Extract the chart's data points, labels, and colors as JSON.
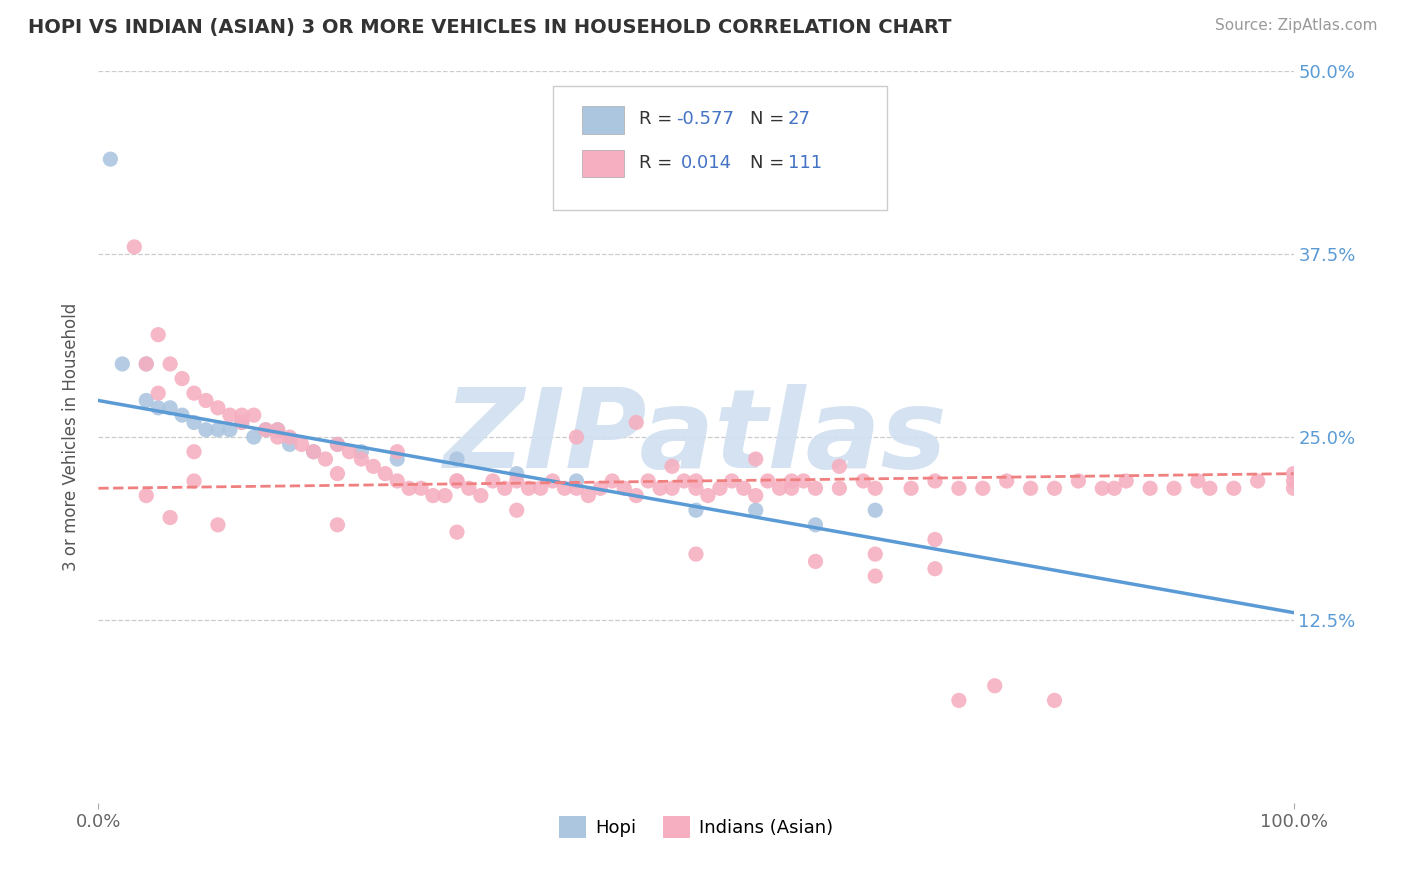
{
  "title": "HOPI VS INDIAN (ASIAN) 3 OR MORE VEHICLES IN HOUSEHOLD CORRELATION CHART",
  "source_text": "Source: ZipAtlas.com",
  "ylabel": "3 or more Vehicles in Household",
  "xmin": 0.0,
  "xmax": 100.0,
  "ymin": 0.0,
  "ymax": 0.5,
  "hopi_R": -0.577,
  "hopi_N": 27,
  "asian_R": 0.014,
  "asian_N": 111,
  "hopi_color": "#adc6e0",
  "asian_color": "#f5afc0",
  "hopi_line_color": "#5b9bd5",
  "asian_line_color": "#f08080",
  "watermark": "ZIPatlas",
  "watermark_color": "#d0dff0",
  "legend_R_color": "#4472c4",
  "hopi_line_x0": 0.0,
  "hopi_line_y0": 0.275,
  "hopi_line_x1": 100.0,
  "hopi_line_y1": 0.13,
  "asian_line_x0": 0.0,
  "asian_line_y0": 0.215,
  "asian_line_x1": 100.0,
  "asian_line_y1": 0.225,
  "hopi_x": [
    1,
    2,
    4,
    4,
    5,
    6,
    7,
    8,
    9,
    10,
    11,
    12,
    13,
    14,
    15,
    16,
    18,
    20,
    22,
    25,
    30,
    35,
    40,
    50,
    55,
    60,
    65
  ],
  "hopi_y": [
    0.44,
    0.3,
    0.3,
    0.275,
    0.27,
    0.27,
    0.265,
    0.26,
    0.255,
    0.255,
    0.255,
    0.26,
    0.25,
    0.255,
    0.255,
    0.245,
    0.24,
    0.245,
    0.24,
    0.235,
    0.235,
    0.225,
    0.22,
    0.2,
    0.2,
    0.19,
    0.2
  ],
  "asian_x": [
    3,
    4,
    5,
    6,
    7,
    8,
    9,
    10,
    11,
    12,
    13,
    14,
    15,
    16,
    17,
    18,
    19,
    20,
    21,
    22,
    23,
    24,
    25,
    26,
    27,
    28,
    29,
    30,
    31,
    32,
    33,
    34,
    35,
    36,
    37,
    38,
    39,
    40,
    41,
    42,
    43,
    44,
    45,
    46,
    47,
    48,
    49,
    50,
    51,
    52,
    53,
    54,
    55,
    56,
    57,
    58,
    59,
    60,
    62,
    64,
    65,
    68,
    70,
    72,
    74,
    76,
    78,
    80,
    82,
    84,
    85,
    86,
    88,
    90,
    92,
    93,
    95,
    97,
    100,
    100,
    100,
    50,
    60,
    70,
    65,
    30,
    20,
    10,
    8,
    6,
    4,
    5,
    8,
    12,
    15,
    20,
    25,
    30,
    35,
    40,
    45,
    48,
    50,
    55,
    58,
    62,
    65,
    70,
    72,
    75,
    80
  ],
  "asian_y": [
    0.38,
    0.3,
    0.32,
    0.3,
    0.29,
    0.28,
    0.275,
    0.27,
    0.265,
    0.26,
    0.265,
    0.255,
    0.255,
    0.25,
    0.245,
    0.24,
    0.235,
    0.245,
    0.24,
    0.235,
    0.23,
    0.225,
    0.22,
    0.215,
    0.215,
    0.21,
    0.21,
    0.22,
    0.215,
    0.21,
    0.22,
    0.215,
    0.22,
    0.215,
    0.215,
    0.22,
    0.215,
    0.215,
    0.21,
    0.215,
    0.22,
    0.215,
    0.21,
    0.22,
    0.215,
    0.215,
    0.22,
    0.215,
    0.21,
    0.215,
    0.22,
    0.215,
    0.21,
    0.22,
    0.215,
    0.215,
    0.22,
    0.215,
    0.215,
    0.22,
    0.215,
    0.215,
    0.22,
    0.215,
    0.215,
    0.22,
    0.215,
    0.215,
    0.22,
    0.215,
    0.215,
    0.22,
    0.215,
    0.215,
    0.22,
    0.215,
    0.215,
    0.22,
    0.225,
    0.22,
    0.215,
    0.17,
    0.165,
    0.16,
    0.155,
    0.185,
    0.19,
    0.19,
    0.22,
    0.195,
    0.21,
    0.28,
    0.24,
    0.265,
    0.25,
    0.225,
    0.24,
    0.22,
    0.2,
    0.25,
    0.26,
    0.23,
    0.22,
    0.235,
    0.22,
    0.23,
    0.17,
    0.18,
    0.07,
    0.08,
    0.07
  ]
}
